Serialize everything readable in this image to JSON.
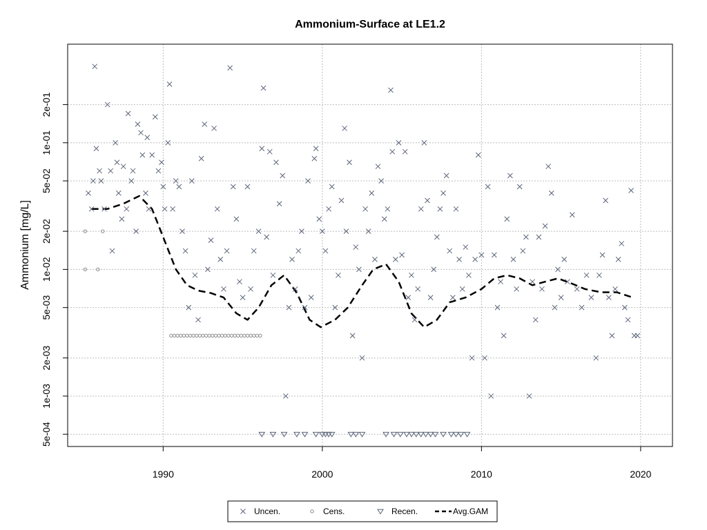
{
  "chart_data": {
    "type": "scatter",
    "title": "Ammonium-Surface at LE1.2",
    "xlabel": "",
    "ylabel": "Ammonium [mg/L]",
    "xlim": [
      1984,
      2022
    ],
    "ylim": [
      0.0004,
      0.6
    ],
    "y_scale": "log",
    "grid": true,
    "x_ticks": [
      1990,
      2000,
      2010,
      2020
    ],
    "x_tick_labels": [
      "1990",
      "2000",
      "2010",
      "2020"
    ],
    "y_ticks": [
      0.0005,
      0.001,
      0.002,
      0.005,
      0.01,
      0.02,
      0.05,
      0.1,
      0.2
    ],
    "y_tick_labels": [
      "5e-04",
      "1e-03",
      "2e-03",
      "5e-03",
      "1e-02",
      "2e-02",
      "5e-02",
      "1e-01",
      "2e-01"
    ],
    "legend_position": "bottom-center",
    "colors": {
      "points": "#5a6478",
      "censored": "#8a8a8a",
      "gam": "#000000",
      "grid": "#bbbbbb"
    },
    "series": [
      {
        "name": "Uncen.",
        "marker": "x",
        "points": [
          [
            1985.3,
            0.04
          ],
          [
            1985.5,
            0.03
          ],
          [
            1985.6,
            0.05
          ],
          [
            1985.7,
            0.4
          ],
          [
            1985.8,
            0.09
          ],
          [
            1986.0,
            0.06
          ],
          [
            1986.1,
            0.05
          ],
          [
            1986.3,
            0.03
          ],
          [
            1986.5,
            0.2
          ],
          [
            1986.7,
            0.06
          ],
          [
            1986.8,
            0.014
          ],
          [
            1987.0,
            0.1
          ],
          [
            1987.1,
            0.07
          ],
          [
            1987.2,
            0.04
          ],
          [
            1987.4,
            0.025
          ],
          [
            1987.5,
            0.065
          ],
          [
            1987.7,
            0.03
          ],
          [
            1987.8,
            0.17
          ],
          [
            1988.0,
            0.05
          ],
          [
            1988.1,
            0.06
          ],
          [
            1988.3,
            0.02
          ],
          [
            1988.4,
            0.14
          ],
          [
            1988.6,
            0.12
          ],
          [
            1988.7,
            0.08
          ],
          [
            1988.9,
            0.04
          ],
          [
            1989.0,
            0.11
          ],
          [
            1989.1,
            0.03
          ],
          [
            1989.3,
            0.08
          ],
          [
            1989.5,
            0.16
          ],
          [
            1989.7,
            0.06
          ],
          [
            1989.9,
            0.07
          ],
          [
            1990.0,
            0.045
          ],
          [
            1990.1,
            0.03
          ],
          [
            1990.3,
            0.1
          ],
          [
            1990.4,
            0.29
          ],
          [
            1990.6,
            0.03
          ],
          [
            1990.8,
            0.05
          ],
          [
            1991.0,
            0.045
          ],
          [
            1991.2,
            0.02
          ],
          [
            1991.4,
            0.014
          ],
          [
            1991.6,
            0.005
          ],
          [
            1991.8,
            0.05
          ],
          [
            1992.0,
            0.009
          ],
          [
            1992.2,
            0.004
          ],
          [
            1992.4,
            0.075
          ],
          [
            1992.6,
            0.14
          ],
          [
            1992.8,
            0.01
          ],
          [
            1993.0,
            0.017
          ],
          [
            1993.2,
            0.13
          ],
          [
            1993.4,
            0.03
          ],
          [
            1993.6,
            0.012
          ],
          [
            1993.8,
            0.007
          ],
          [
            1994.0,
            0.014
          ],
          [
            1994.2,
            0.39
          ],
          [
            1994.4,
            0.045
          ],
          [
            1994.6,
            0.025
          ],
          [
            1994.8,
            0.008
          ],
          [
            1995.0,
            0.006
          ],
          [
            1995.3,
            0.045
          ],
          [
            1995.5,
            0.007
          ],
          [
            1995.7,
            0.014
          ],
          [
            1996.0,
            0.02
          ],
          [
            1996.2,
            0.09
          ],
          [
            1996.3,
            0.27
          ],
          [
            1996.5,
            0.018
          ],
          [
            1996.7,
            0.085
          ],
          [
            1996.9,
            0.009
          ],
          [
            1997.1,
            0.07
          ],
          [
            1997.3,
            0.033
          ],
          [
            1997.5,
            0.055
          ],
          [
            1997.7,
            0.001
          ],
          [
            1997.9,
            0.005
          ],
          [
            1998.1,
            0.012
          ],
          [
            1998.3,
            0.007
          ],
          [
            1998.5,
            0.014
          ],
          [
            1998.7,
            0.02
          ],
          [
            1998.9,
            0.005
          ],
          [
            1999.1,
            0.05
          ],
          [
            1999.3,
            0.006
          ],
          [
            1999.5,
            0.075
          ],
          [
            1999.6,
            0.09
          ],
          [
            1999.8,
            0.025
          ],
          [
            2000.0,
            0.02
          ],
          [
            2000.2,
            0.014
          ],
          [
            2000.4,
            0.03
          ],
          [
            2000.6,
            0.045
          ],
          [
            2000.8,
            0.005
          ],
          [
            2001.0,
            0.009
          ],
          [
            2001.2,
            0.035
          ],
          [
            2001.4,
            0.13
          ],
          [
            2001.5,
            0.02
          ],
          [
            2001.7,
            0.07
          ],
          [
            2001.9,
            0.003
          ],
          [
            2002.1,
            0.015
          ],
          [
            2002.3,
            0.01
          ],
          [
            2002.5,
            0.002
          ],
          [
            2002.7,
            0.03
          ],
          [
            2002.9,
            0.02
          ],
          [
            2003.1,
            0.04
          ],
          [
            2003.3,
            0.012
          ],
          [
            2003.5,
            0.065
          ],
          [
            2003.7,
            0.05
          ],
          [
            2003.9,
            0.025
          ],
          [
            2004.1,
            0.03
          ],
          [
            2004.3,
            0.26
          ],
          [
            2004.4,
            0.085
          ],
          [
            2004.6,
            0.012
          ],
          [
            2004.8,
            0.1
          ],
          [
            2005.0,
            0.013
          ],
          [
            2005.2,
            0.085
          ],
          [
            2005.4,
            0.006
          ],
          [
            2005.6,
            0.009
          ],
          [
            2005.8,
            0.004
          ],
          [
            2006.0,
            0.007
          ],
          [
            2006.2,
            0.03
          ],
          [
            2006.4,
            0.1
          ],
          [
            2006.6,
            0.035
          ],
          [
            2006.8,
            0.006
          ],
          [
            2007.0,
            0.01
          ],
          [
            2007.2,
            0.018
          ],
          [
            2007.4,
            0.03
          ],
          [
            2007.6,
            0.04
          ],
          [
            2007.8,
            0.055
          ],
          [
            2008.0,
            0.014
          ],
          [
            2008.2,
            0.006
          ],
          [
            2008.4,
            0.03
          ],
          [
            2008.6,
            0.012
          ],
          [
            2008.8,
            0.007
          ],
          [
            2009.0,
            0.015
          ],
          [
            2009.2,
            0.009
          ],
          [
            2009.4,
            0.002
          ],
          [
            2009.6,
            0.012
          ],
          [
            2009.8,
            0.08
          ],
          [
            2010.0,
            0.013
          ],
          [
            2010.2,
            0.002
          ],
          [
            2010.4,
            0.045
          ],
          [
            2010.6,
            0.001
          ],
          [
            2010.8,
            0.013
          ],
          [
            2011.0,
            0.005
          ],
          [
            2011.2,
            0.008
          ],
          [
            2011.4,
            0.003
          ],
          [
            2011.6,
            0.025
          ],
          [
            2011.8,
            0.055
          ],
          [
            2012.0,
            0.012
          ],
          [
            2012.2,
            0.007
          ],
          [
            2012.4,
            0.045
          ],
          [
            2012.6,
            0.014
          ],
          [
            2012.8,
            0.018
          ],
          [
            2013.0,
            0.001
          ],
          [
            2013.2,
            0.008
          ],
          [
            2013.4,
            0.004
          ],
          [
            2013.6,
            0.018
          ],
          [
            2013.8,
            0.007
          ],
          [
            2014.0,
            0.022
          ],
          [
            2014.2,
            0.065
          ],
          [
            2014.4,
            0.04
          ],
          [
            2014.6,
            0.005
          ],
          [
            2014.8,
            0.01
          ],
          [
            2015.0,
            0.006
          ],
          [
            2015.2,
            0.012
          ],
          [
            2015.4,
            0.008
          ],
          [
            2015.7,
            0.027
          ],
          [
            2016.0,
            0.007
          ],
          [
            2016.3,
            0.005
          ],
          [
            2016.6,
            0.009
          ],
          [
            2016.9,
            0.006
          ],
          [
            2017.2,
            0.002
          ],
          [
            2017.4,
            0.009
          ],
          [
            2017.6,
            0.013
          ],
          [
            2017.8,
            0.035
          ],
          [
            2018.0,
            0.006
          ],
          [
            2018.2,
            0.003
          ],
          [
            2018.4,
            0.007
          ],
          [
            2018.6,
            0.012
          ],
          [
            2018.8,
            0.016
          ],
          [
            2019.0,
            0.005
          ],
          [
            2019.2,
            0.004
          ],
          [
            2019.4,
            0.042
          ],
          [
            2019.6,
            0.003
          ],
          [
            2019.8,
            0.003
          ]
        ]
      },
      {
        "name": "Cens.",
        "marker": "o",
        "points": [
          [
            1985.1,
            0.01
          ],
          [
            1985.1,
            0.02
          ],
          [
            1985.9,
            0.01
          ],
          [
            1986.2,
            0.02
          ],
          [
            1990.5,
            0.003
          ],
          [
            1990.7,
            0.003
          ],
          [
            1990.9,
            0.003
          ],
          [
            1991.1,
            0.003
          ],
          [
            1991.3,
            0.003
          ],
          [
            1991.5,
            0.003
          ],
          [
            1991.7,
            0.003
          ],
          [
            1991.9,
            0.003
          ],
          [
            1992.1,
            0.003
          ],
          [
            1992.3,
            0.003
          ],
          [
            1992.5,
            0.003
          ],
          [
            1992.7,
            0.003
          ],
          [
            1992.9,
            0.003
          ],
          [
            1993.1,
            0.003
          ],
          [
            1993.3,
            0.003
          ],
          [
            1993.5,
            0.003
          ],
          [
            1993.7,
            0.003
          ],
          [
            1993.9,
            0.003
          ],
          [
            1994.1,
            0.003
          ],
          [
            1994.3,
            0.003
          ],
          [
            1994.5,
            0.003
          ],
          [
            1994.7,
            0.003
          ],
          [
            1994.9,
            0.003
          ],
          [
            1995.1,
            0.003
          ],
          [
            1995.3,
            0.003
          ],
          [
            1995.5,
            0.003
          ],
          [
            1995.7,
            0.003
          ],
          [
            1995.9,
            0.003
          ],
          [
            1996.1,
            0.003
          ]
        ]
      },
      {
        "name": "Recen.",
        "marker": "triangle-down",
        "points": [
          [
            1996.2,
            0.0005
          ],
          [
            1996.9,
            0.0005
          ],
          [
            1997.6,
            0.0005
          ],
          [
            1998.4,
            0.0005
          ],
          [
            1998.9,
            0.0005
          ],
          [
            1999.6,
            0.0005
          ],
          [
            2000.0,
            0.0005
          ],
          [
            2000.2,
            0.0005
          ],
          [
            2000.4,
            0.0005
          ],
          [
            2000.6,
            0.0005
          ],
          [
            2001.8,
            0.0005
          ],
          [
            2002.1,
            0.0005
          ],
          [
            2002.5,
            0.0005
          ],
          [
            2004.0,
            0.0005
          ],
          [
            2004.5,
            0.0005
          ],
          [
            2004.9,
            0.0005
          ],
          [
            2005.3,
            0.0005
          ],
          [
            2005.6,
            0.0005
          ],
          [
            2005.9,
            0.0005
          ],
          [
            2006.2,
            0.0005
          ],
          [
            2006.5,
            0.0005
          ],
          [
            2006.8,
            0.0005
          ],
          [
            2007.1,
            0.0005
          ],
          [
            2007.6,
            0.0005
          ],
          [
            2008.1,
            0.0005
          ],
          [
            2008.4,
            0.0005
          ],
          [
            2008.7,
            0.0005
          ],
          [
            2009.1,
            0.0005
          ]
        ]
      },
      {
        "name": "Avg.GAM",
        "marker": "dashed-line",
        "points": [
          [
            1985.5,
            0.03
          ],
          [
            1986.5,
            0.03
          ],
          [
            1987.5,
            0.033
          ],
          [
            1988.5,
            0.038
          ],
          [
            1989.3,
            0.03
          ],
          [
            1990.0,
            0.018
          ],
          [
            1990.8,
            0.01
          ],
          [
            1991.5,
            0.0075
          ],
          [
            1992.2,
            0.0068
          ],
          [
            1993.0,
            0.0065
          ],
          [
            1993.8,
            0.006
          ],
          [
            1994.6,
            0.0045
          ],
          [
            1995.3,
            0.004
          ],
          [
            1996.0,
            0.005
          ],
          [
            1996.8,
            0.0075
          ],
          [
            1997.6,
            0.009
          ],
          [
            1998.4,
            0.0065
          ],
          [
            1999.2,
            0.004
          ],
          [
            1999.9,
            0.0035
          ],
          [
            2000.8,
            0.004
          ],
          [
            2001.6,
            0.005
          ],
          [
            2002.5,
            0.0075
          ],
          [
            2003.2,
            0.01
          ],
          [
            2004.0,
            0.011
          ],
          [
            2004.8,
            0.008
          ],
          [
            2005.6,
            0.0045
          ],
          [
            2006.4,
            0.0035
          ],
          [
            2007.2,
            0.004
          ],
          [
            2008.0,
            0.0055
          ],
          [
            2009.0,
            0.006
          ],
          [
            2010.0,
            0.007
          ],
          [
            2010.8,
            0.0085
          ],
          [
            2011.6,
            0.009
          ],
          [
            2012.4,
            0.0085
          ],
          [
            2013.2,
            0.0075
          ],
          [
            2014.0,
            0.008
          ],
          [
            2014.8,
            0.0085
          ],
          [
            2015.6,
            0.0078
          ],
          [
            2016.5,
            0.007
          ],
          [
            2017.5,
            0.0066
          ],
          [
            2018.5,
            0.0066
          ],
          [
            2019.5,
            0.006
          ]
        ]
      }
    ]
  }
}
